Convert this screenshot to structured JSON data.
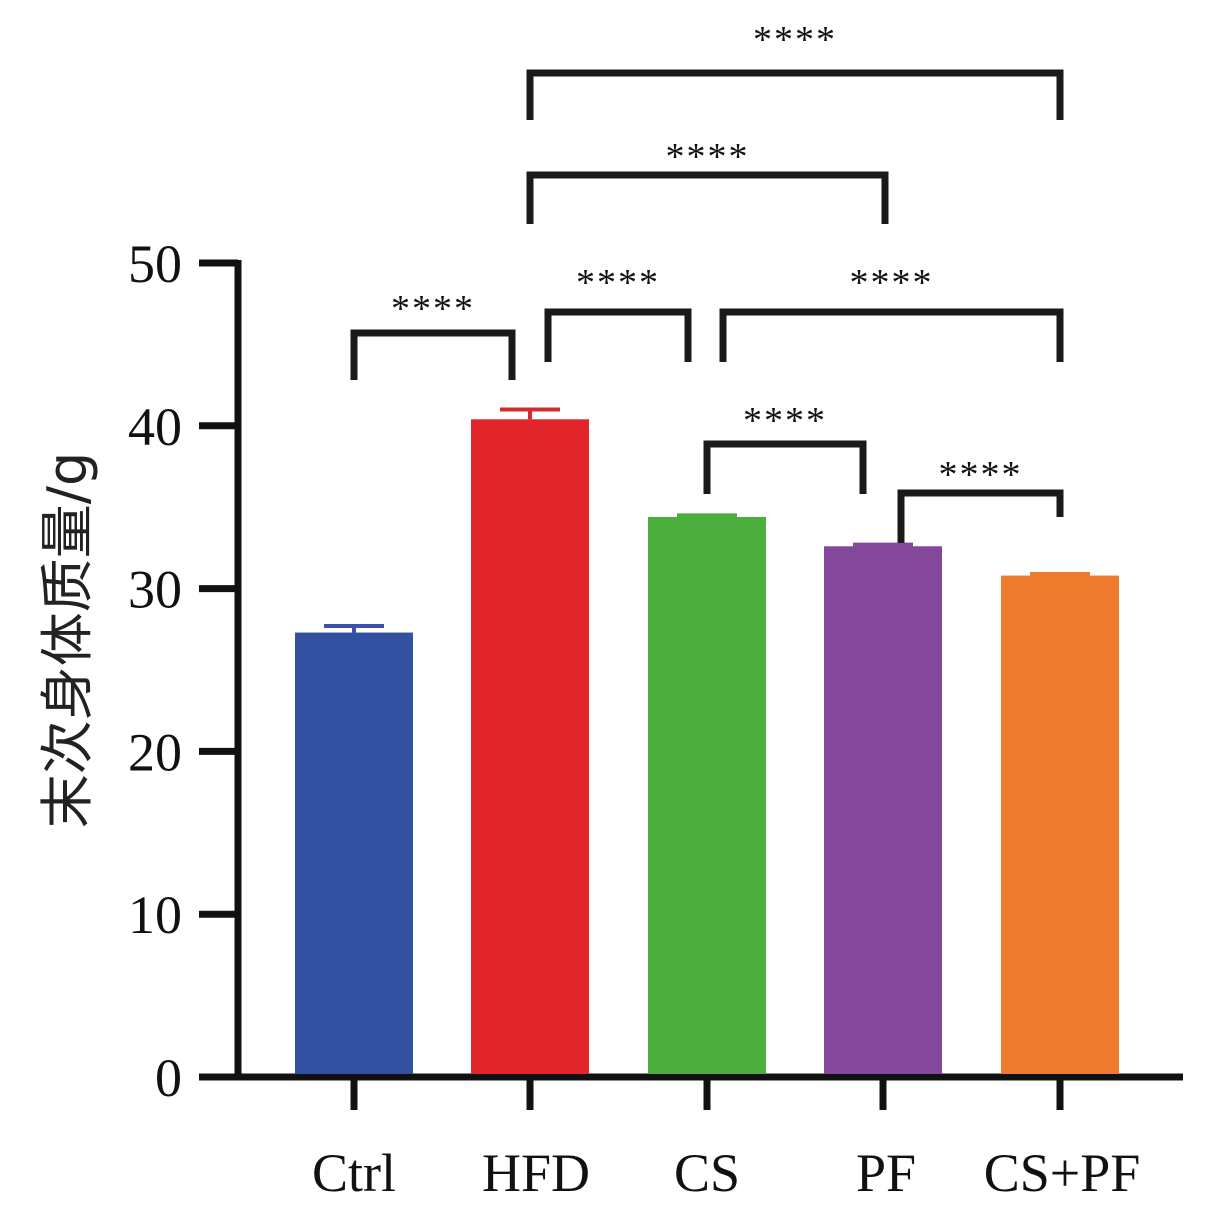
{
  "chart_data": {
    "type": "bar",
    "title": "",
    "xlabel": "",
    "ylabel": "末次身体质量/g",
    "ylim": [
      0,
      50
    ],
    "yticks": [
      0,
      10,
      20,
      30,
      40,
      50
    ],
    "grid": false,
    "categories": [
      "Ctrl",
      "HFD",
      "CS",
      "PF",
      "CS+PF"
    ],
    "values": [
      27.3,
      40.4,
      34.4,
      32.6,
      30.8
    ],
    "errors": [
      0.4,
      0.6,
      0.1,
      0.1,
      0.1
    ],
    "colors": [
      "#3451a1",
      "#e2262b",
      "#4cae3d",
      "#83489a",
      "#ef7b30"
    ],
    "error_colors": [
      "#3d4fb0",
      "#d42a2e",
      "#4cae3d",
      "#83489a",
      "#ef7b30"
    ],
    "significance": [
      {
        "from": "Ctrl",
        "to": "HFD",
        "label": "****"
      },
      {
        "from": "HFD",
        "to": "CS",
        "label": "****"
      },
      {
        "from": "CS",
        "to": "CS+PF",
        "label": "****"
      },
      {
        "from": "CS",
        "to": "PF",
        "label": "****"
      },
      {
        "from": "PF",
        "to": "CS+PF",
        "label": "****"
      },
      {
        "from": "HFD",
        "to": "PF",
        "label": "****"
      },
      {
        "from": "HFD",
        "to": "CS+PF",
        "label": "****"
      }
    ]
  }
}
